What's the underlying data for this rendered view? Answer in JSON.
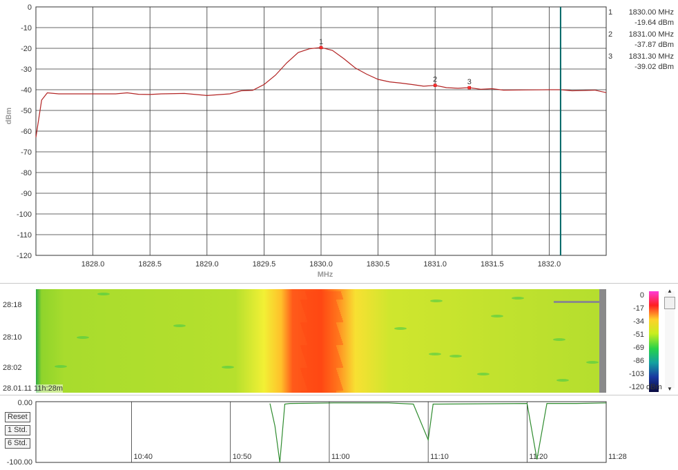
{
  "spectrum": {
    "xlabel": "MHz",
    "ylabel": "dBm",
    "y_ticks": [
      "0",
      "-10",
      "-20",
      "-30",
      "-40",
      "-50",
      "-60",
      "-70",
      "-80",
      "-90",
      "-100",
      "-110",
      "-120"
    ],
    "x_ticks": [
      "1828.0",
      "1828.5",
      "1829.0",
      "1829.5",
      "1830.0",
      "1830.5",
      "1831.0",
      "1831.5",
      "1832.0"
    ],
    "markers": [
      {
        "id": "1",
        "freq": "1830.00 MHz",
        "level": "-19.64 dBm"
      },
      {
        "id": "2",
        "freq": "1831.00 MHz",
        "level": "-37.87 dBm"
      },
      {
        "id": "3",
        "freq": "1831.30 MHz",
        "level": "-39.02 dBm"
      }
    ]
  },
  "waterfall": {
    "time_labels": [
      "28:18",
      "28:10",
      "28:02"
    ],
    "timestamp": "28.01.11 11h:28m",
    "scale_labels": [
      "0",
      "-17",
      "-34",
      "-51",
      "-69",
      "-86",
      "-103",
      "-120"
    ],
    "scale_unit": "dBm"
  },
  "timeline": {
    "y_top": "0.00",
    "y_bottom": "-100.00",
    "time_labels": [
      "10:40",
      "10:50",
      "11:00",
      "11:10",
      "11:20",
      "11:28"
    ],
    "buttons": {
      "reset": "Reset",
      "one_std": "1 Std.",
      "six_std": "6 Std."
    }
  },
  "chart_data": [
    {
      "type": "line",
      "xlabel": "MHz",
      "ylabel": "dBm",
      "xlim": [
        1827.5,
        1832.5
      ],
      "ylim": [
        -120,
        0
      ],
      "grid": true,
      "series": [
        {
          "color": "#b22222",
          "x": [
            1827.5,
            1827.55,
            1827.6,
            1827.7,
            1827.8,
            1828.0,
            1828.2,
            1828.3,
            1828.4,
            1828.5,
            1828.6,
            1828.8,
            1829.0,
            1829.2,
            1829.3,
            1829.4,
            1829.5,
            1829.6,
            1829.7,
            1829.8,
            1829.9,
            1830.0,
            1830.1,
            1830.2,
            1830.3,
            1830.4,
            1830.5,
            1830.6,
            1830.7,
            1830.8,
            1830.9,
            1831.0,
            1831.1,
            1831.2,
            1831.3,
            1831.4,
            1831.5,
            1831.6,
            1831.8,
            1832.0,
            1832.1,
            1832.2,
            1832.3,
            1832.4,
            1832.5
          ],
          "y": [
            -63,
            -45,
            -41.5,
            -42,
            -42,
            -42,
            -42,
            -41.5,
            -42.2,
            -42.3,
            -42,
            -41.8,
            -42.8,
            -42,
            -40.5,
            -40.3,
            -37.5,
            -33,
            -27,
            -22,
            -20.2,
            -19.6,
            -21,
            -25,
            -29.5,
            -32.5,
            -35,
            -36.2,
            -36.8,
            -37.5,
            -38.3,
            -37.9,
            -39,
            -39.3,
            -39,
            -39.8,
            -39.5,
            -40.2,
            -40.1,
            -40,
            -40,
            -40.5,
            -40.4,
            -40.2,
            -41.4
          ]
        }
      ],
      "markers": [
        {
          "label": "1",
          "x": 1830.0,
          "y": -19.64
        },
        {
          "label": "2",
          "x": 1831.0,
          "y": -37.87
        },
        {
          "label": "3",
          "x": 1831.3,
          "y": -39.02
        }
      ],
      "vertical_line": {
        "x": 1832.1,
        "color": "#006666"
      }
    },
    {
      "type": "heatmap",
      "colorscale_range": [
        -120,
        0
      ],
      "peak_center_freq": 1830.0,
      "background_level": -40,
      "peak_level": -19
    },
    {
      "type": "line",
      "ylim": [
        -100,
        0
      ],
      "grid": true,
      "series": [
        {
          "color": "#2e8b2e",
          "x": [
            "10:54:00",
            "10:54:30",
            "10:55:00",
            "10:55:30",
            "10:56:00",
            "11:00:30",
            "11:06:00",
            "11:08:30",
            "11:10:00",
            "11:10:30",
            "11:11:00",
            "11:20:00",
            "11:21:00",
            "11:22:00",
            "11:25:00",
            "11:28:00"
          ],
          "y": [
            -3,
            -40,
            -100,
            -4,
            -3,
            -2,
            -2,
            -4,
            -63,
            -4,
            -4,
            -3,
            -95,
            -3,
            -3,
            -2
          ]
        }
      ]
    }
  ]
}
